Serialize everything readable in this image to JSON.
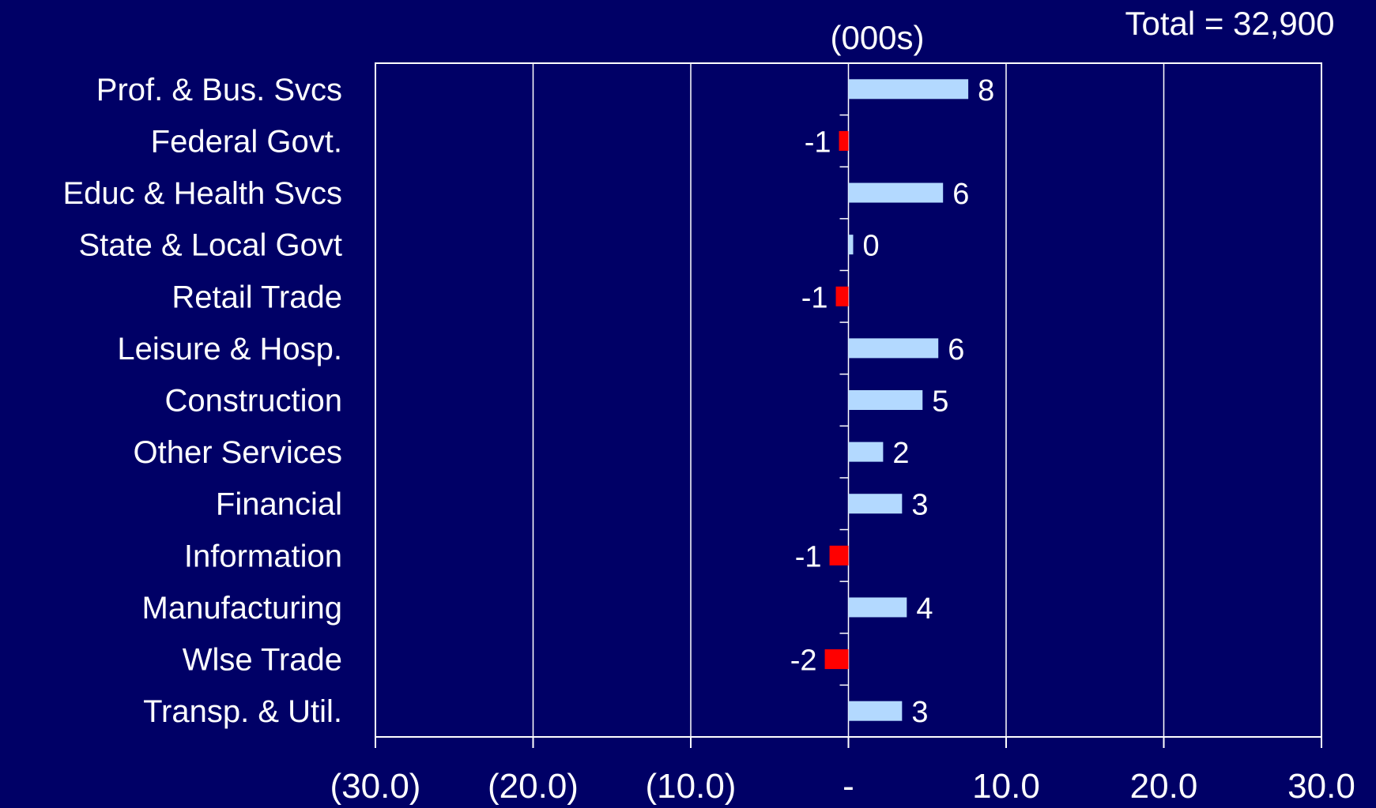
{
  "chart_data": {
    "type": "hbar",
    "subtitle": "(000s)",
    "annotation": "Total = 32,900",
    "categories": [
      "Prof. & Bus. Svcs",
      "Federal Govt.",
      "Educ & Health Svcs",
      "State & Local Govt",
      "Retail Trade",
      "Leisure & Hosp.",
      "Construction",
      "Other Services",
      "Financial",
      "Information",
      "Manufacturing",
      "Wlse Trade",
      "Transp. & Util."
    ],
    "values": [
      7.6,
      -0.6,
      6.0,
      0.3,
      -0.8,
      5.7,
      4.7,
      2.2,
      3.4,
      -1.2,
      3.7,
      -1.5,
      3.4
    ],
    "value_labels": [
      "8",
      "-1",
      "6",
      "0",
      "-1",
      "6",
      "5",
      "2",
      "3",
      "-1",
      "4",
      "-2",
      "3"
    ],
    "colors": [
      "#b3d9ff",
      "#ff0000",
      "#b3d9ff",
      "#b3d9ff",
      "#ff0000",
      "#b3d9ff",
      "#b3d9ff",
      "#b3d9ff",
      "#b3d9ff",
      "#ff0000",
      "#b3d9ff",
      "#ff0000",
      "#b3d9ff"
    ],
    "xlim": [
      -30,
      30
    ],
    "xticks": [
      {
        "value": -30,
        "label": "(30.0)"
      },
      {
        "value": -20,
        "label": "(20.0)"
      },
      {
        "value": -10,
        "label": "(10.0)"
      },
      {
        "value": 0,
        "label": "-"
      },
      {
        "value": 10,
        "label": "10.0"
      },
      {
        "value": 20,
        "label": "20.0"
      },
      {
        "value": 30,
        "label": "30.0"
      }
    ],
    "grid": true
  }
}
